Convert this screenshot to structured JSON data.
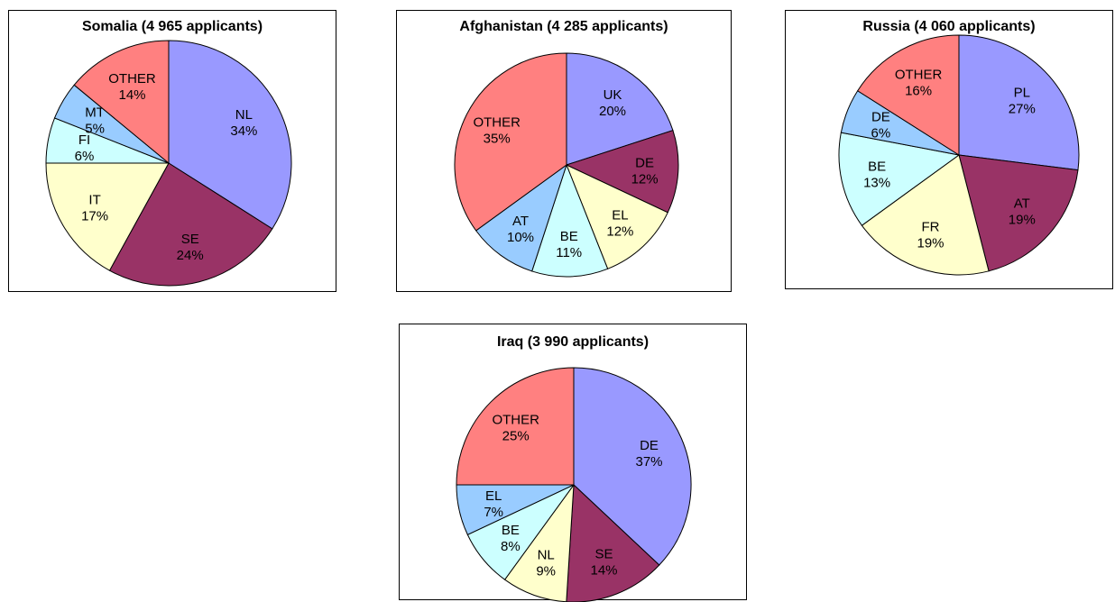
{
  "chart_data": [
    {
      "type": "pie",
      "title": "Somalia (4 965 applicants)",
      "slices": [
        {
          "label": "NL",
          "value": 34,
          "value_label": "34%",
          "color": "#9999ff"
        },
        {
          "label": "SE",
          "value": 24,
          "value_label": "24%",
          "color": "#993366"
        },
        {
          "label": "IT",
          "value": 17,
          "value_label": "17%",
          "color": "#ffffcc"
        },
        {
          "label": "FI",
          "value": 6,
          "value_label": "6%",
          "color": "#ccffff"
        },
        {
          "label": "MT",
          "value": 5,
          "value_label": "5%",
          "color": "#99ccff"
        },
        {
          "label": "OTHER",
          "value": 14,
          "value_label": "14%",
          "color": "#ff8080"
        }
      ]
    },
    {
      "type": "pie",
      "title": "Afghanistan (4 285 applicants)",
      "slices": [
        {
          "label": "UK",
          "value": 20,
          "value_label": "20%",
          "color": "#9999ff"
        },
        {
          "label": "DE",
          "value": 12,
          "value_label": "12%",
          "color": "#993366"
        },
        {
          "label": "EL",
          "value": 12,
          "value_label": "12%",
          "color": "#ffffcc"
        },
        {
          "label": "BE",
          "value": 11,
          "value_label": "11%",
          "color": "#ccffff"
        },
        {
          "label": "AT",
          "value": 10,
          "value_label": "10%",
          "color": "#99ccff"
        },
        {
          "label": "OTHER",
          "value": 35,
          "value_label": "35%",
          "color": "#ff8080"
        }
      ]
    },
    {
      "type": "pie",
      "title": "Russia (4 060 applicants)",
      "slices": [
        {
          "label": "PL",
          "value": 27,
          "value_label": "27%",
          "color": "#9999ff"
        },
        {
          "label": "AT",
          "value": 19,
          "value_label": "19%",
          "color": "#993366"
        },
        {
          "label": "FR",
          "value": 19,
          "value_label": "19%",
          "color": "#ffffcc"
        },
        {
          "label": "BE",
          "value": 13,
          "value_label": "13%",
          "color": "#ccffff"
        },
        {
          "label": "DE",
          "value": 6,
          "value_label": "6%",
          "color": "#99ccff"
        },
        {
          "label": "OTHER",
          "value": 16,
          "value_label": "16%",
          "color": "#ff8080"
        }
      ]
    },
    {
      "type": "pie",
      "title": "Iraq (3 990 applicants)",
      "slices": [
        {
          "label": "DE",
          "value": 37,
          "value_label": "37%",
          "color": "#9999ff"
        },
        {
          "label": "SE",
          "value": 14,
          "value_label": "14%",
          "color": "#993366"
        },
        {
          "label": "NL",
          "value": 9,
          "value_label": "9%",
          "color": "#ffffcc"
        },
        {
          "label": "BE",
          "value": 8,
          "value_label": "8%",
          "color": "#ccffff"
        },
        {
          "label": "EL",
          "value": 7,
          "value_label": "7%",
          "color": "#99ccff"
        },
        {
          "label": "OTHER",
          "value": 25,
          "value_label": "25%",
          "color": "#ff8080"
        }
      ]
    }
  ]
}
